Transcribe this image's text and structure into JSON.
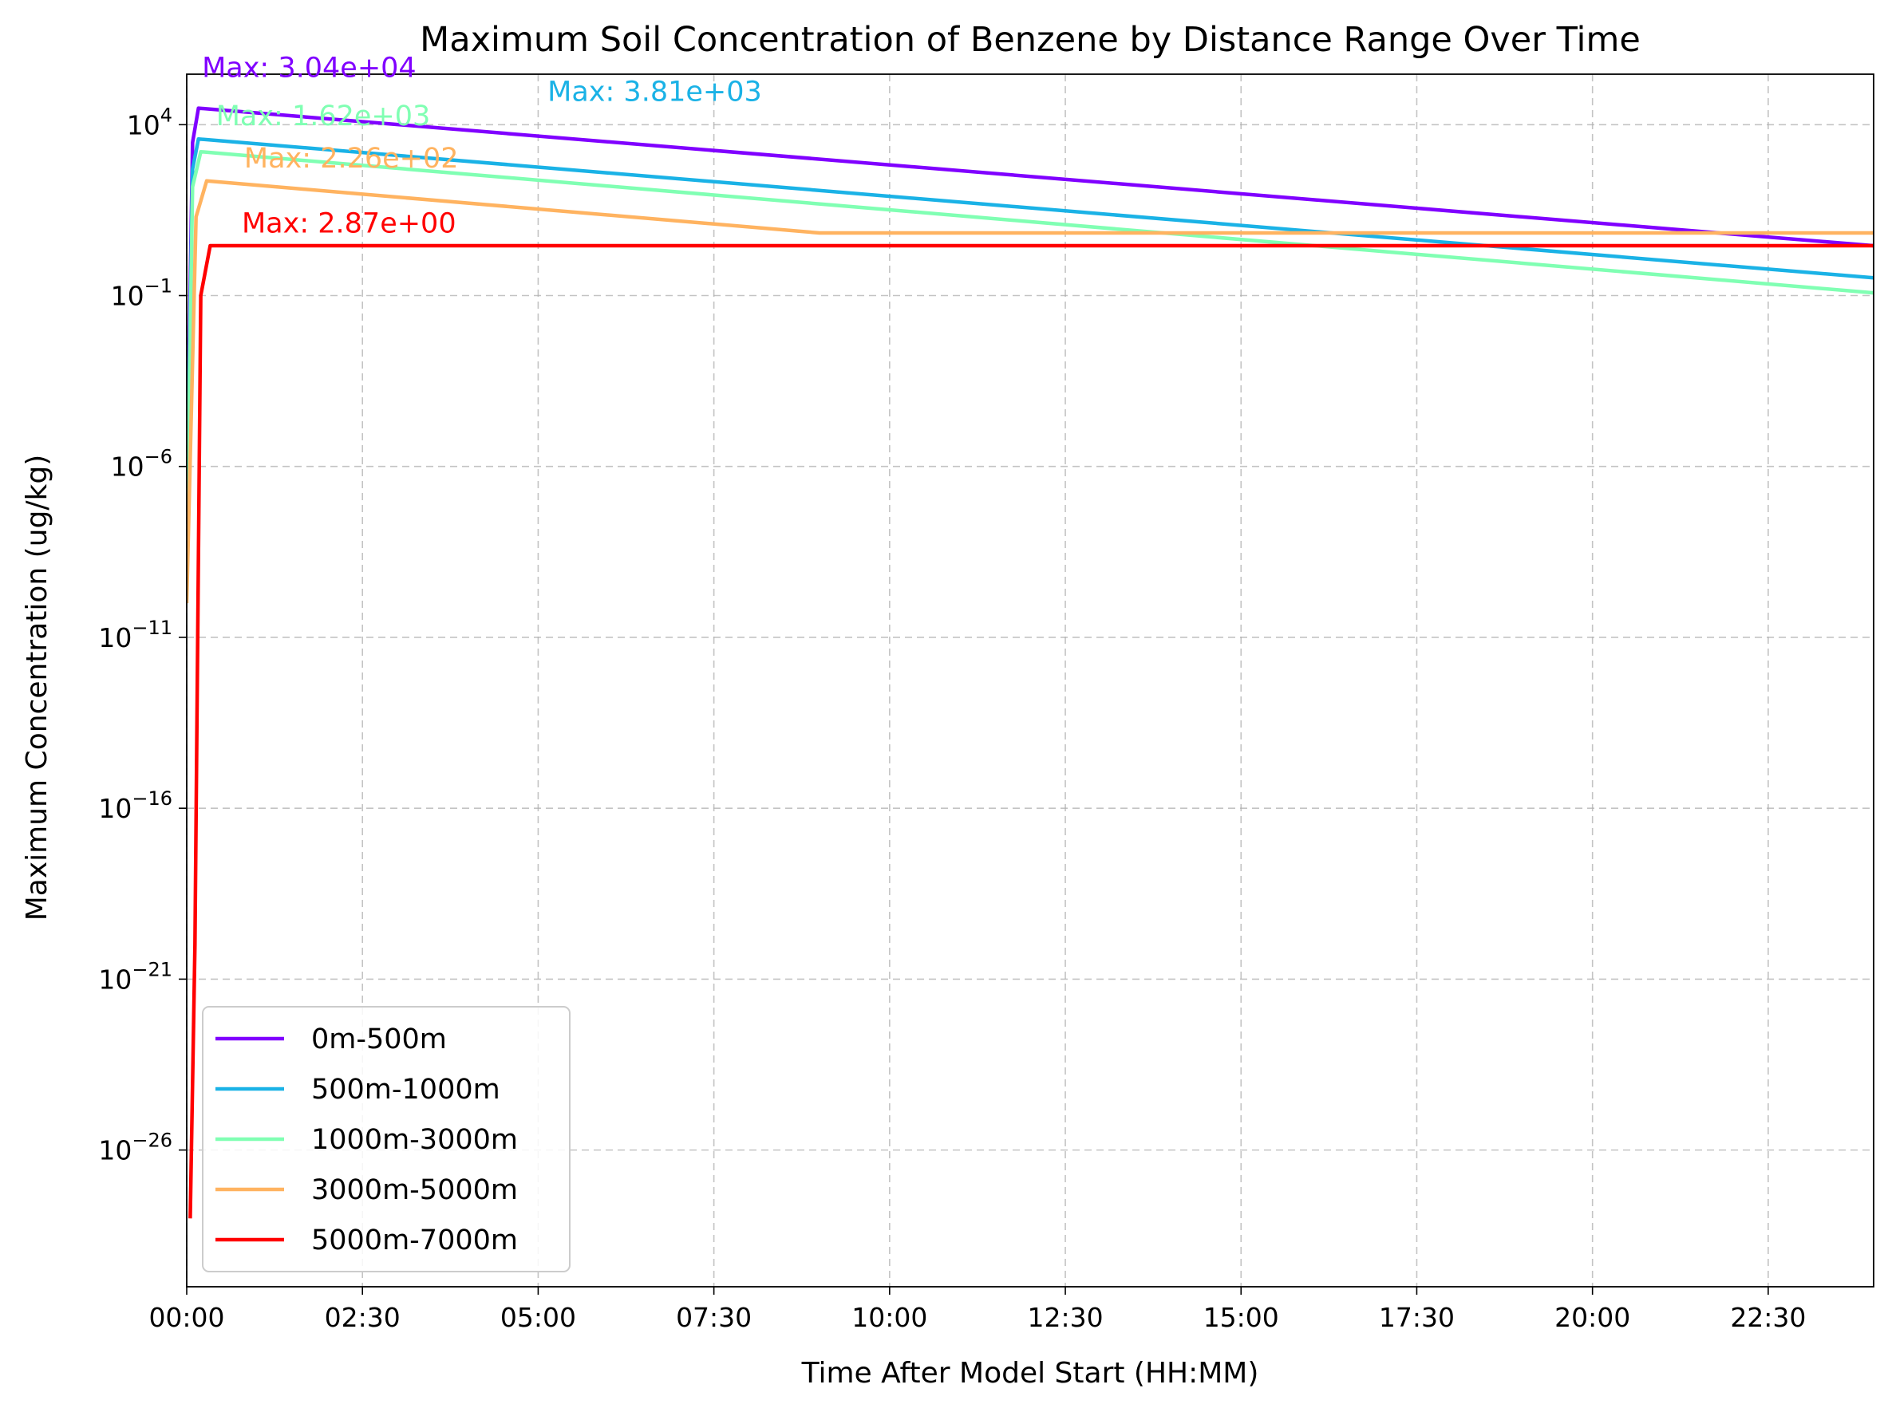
{
  "chart_data": {
    "type": "line",
    "title": "Maximum Soil Concentration of Benzene by Distance Range Over Time",
    "xlabel": "Time After Model Start (HH:MM)",
    "ylabel": "Maximum Concentration (ug/kg)",
    "xlim": [
      "00:00",
      "24:00"
    ],
    "y_scale": "log",
    "ylim": [
      1e-30,
      300000.0
    ],
    "x_ticks": [
      "00:00",
      "02:30",
      "05:00",
      "07:30",
      "10:00",
      "12:30",
      "15:00",
      "17:30",
      "20:00",
      "22:30"
    ],
    "y_ticks": [
      {
        "base": "10",
        "exp": "4",
        "value": 10000.0
      },
      {
        "base": "10",
        "exp": "−1",
        "value": 0.1
      },
      {
        "base": "10",
        "exp": "−6",
        "value": 1e-06
      },
      {
        "base": "10",
        "exp": "−11",
        "value": 1e-11
      },
      {
        "base": "10",
        "exp": "−16",
        "value": 1e-16
      },
      {
        "base": "10",
        "exp": "−21",
        "value": 1e-21
      },
      {
        "base": "10",
        "exp": "−26",
        "value": 1e-26
      }
    ],
    "grid": true,
    "legend_position": "lower-left",
    "series": [
      {
        "name": "0m-500m",
        "color": "#8000ff",
        "points": [
          [
            "00:00",
            1e-07
          ],
          [
            "00:05",
            3000
          ],
          [
            "00:10",
            30400
          ],
          [
            "24:00",
            2.87
          ]
        ]
      },
      {
        "name": "500m-1000m",
        "color": "#1ab2e6",
        "points": [
          [
            "00:00",
            1e-08
          ],
          [
            "00:05",
            500
          ],
          [
            "00:10",
            3810
          ],
          [
            "24:00",
            0.33
          ]
        ]
      },
      {
        "name": "1000m-3000m",
        "color": "#80ffb3",
        "points": [
          [
            "00:00",
            1e-09
          ],
          [
            "00:05",
            150
          ],
          [
            "00:12",
            1620
          ],
          [
            "24:00",
            0.12
          ]
        ]
      },
      {
        "name": "3000m-5000m",
        "color": "#ffb360",
        "points": [
          [
            "00:00",
            1e-10
          ],
          [
            "00:08",
            20
          ],
          [
            "00:17",
            226
          ],
          [
            "09:00",
            6.8
          ],
          [
            "24:00",
            6.8
          ]
        ]
      },
      {
        "name": "5000m-7000m",
        "color": "#ff0000",
        "points": [
          [
            "00:03",
            1e-28
          ],
          [
            "00:07",
            1e-20
          ],
          [
            "00:12",
            0.1
          ],
          [
            "00:20",
            2.87
          ],
          [
            "24:00",
            2.87
          ]
        ]
      }
    ],
    "annotations": [
      {
        "text": "Max: 3.04e+04",
        "color": "#8000ff",
        "at": [
          "00:13",
          250000
        ]
      },
      {
        "text": "Max: 3.81e+03",
        "color": "#1ab2e6",
        "at": [
          "05:08",
          50000
        ]
      },
      {
        "text": "Max: 1.62e+03",
        "color": "#80ffb3",
        "at": [
          "00:25",
          9500
        ]
      },
      {
        "text": "Max: 2.26e+02",
        "color": "#ffb360",
        "at": [
          "00:49",
          560
        ]
      },
      {
        "text": "Max: 2.87e+00",
        "color": "#ff0000",
        "at": [
          "00:47",
          7
        ]
      }
    ]
  }
}
